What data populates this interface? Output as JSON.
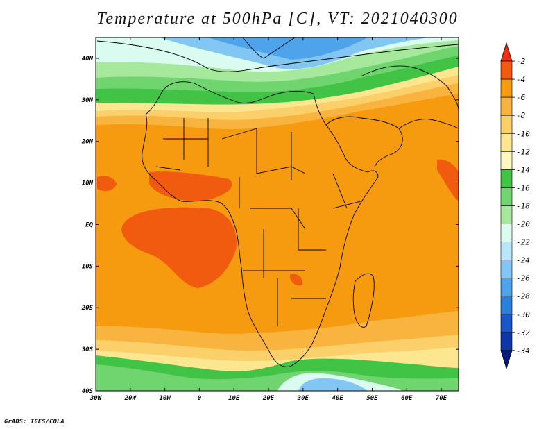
{
  "title": "Temperature at 500hPa [C], VT: 2021040300",
  "footer": "GrADS: IGES/COLA",
  "map": {
    "lon_range": [
      -30,
      75
    ],
    "lat_range": [
      -40,
      45
    ],
    "lon_ticks": [
      {
        "v": -30,
        "label": "30W"
      },
      {
        "v": -20,
        "label": "20W"
      },
      {
        "v": -10,
        "label": "10W"
      },
      {
        "v": 0,
        "label": "0"
      },
      {
        "v": 10,
        "label": "10E"
      },
      {
        "v": 20,
        "label": "20E"
      },
      {
        "v": 30,
        "label": "30E"
      },
      {
        "v": 40,
        "label": "40E"
      },
      {
        "v": 50,
        "label": "50E"
      },
      {
        "v": 60,
        "label": "60E"
      },
      {
        "v": 70,
        "label": "70E"
      }
    ],
    "lat_ticks": [
      {
        "v": 40,
        "label": "40N"
      },
      {
        "v": 30,
        "label": "30N"
      },
      {
        "v": 20,
        "label": "20N"
      },
      {
        "v": 10,
        "label": "10N"
      },
      {
        "v": 0,
        "label": "EQ"
      },
      {
        "v": -10,
        "label": "10S"
      },
      {
        "v": -20,
        "label": "20S"
      },
      {
        "v": -30,
        "label": "30S"
      },
      {
        "v": -40,
        "label": "40S"
      }
    ]
  },
  "colorbar": {
    "levels": [
      "-2",
      "-4",
      "-6",
      "-8",
      "-10",
      "-12",
      "-14",
      "-16",
      "-18",
      "-20",
      "-22",
      "-24",
      "-26",
      "-28",
      "-30",
      "-32",
      "-34"
    ],
    "colors": [
      "#e8340f",
      "#f05b10",
      "#f69a10",
      "#f8b43e",
      "#fbd06b",
      "#fde690",
      "#fef8c0",
      "#41c445",
      "#71d56f",
      "#a6e89c",
      "#dafbf0",
      "#b8e6fb",
      "#82c6f3",
      "#4ea3ea",
      "#2b80db",
      "#1a57c9",
      "#0d36a8",
      "#081a7a"
    ]
  }
}
